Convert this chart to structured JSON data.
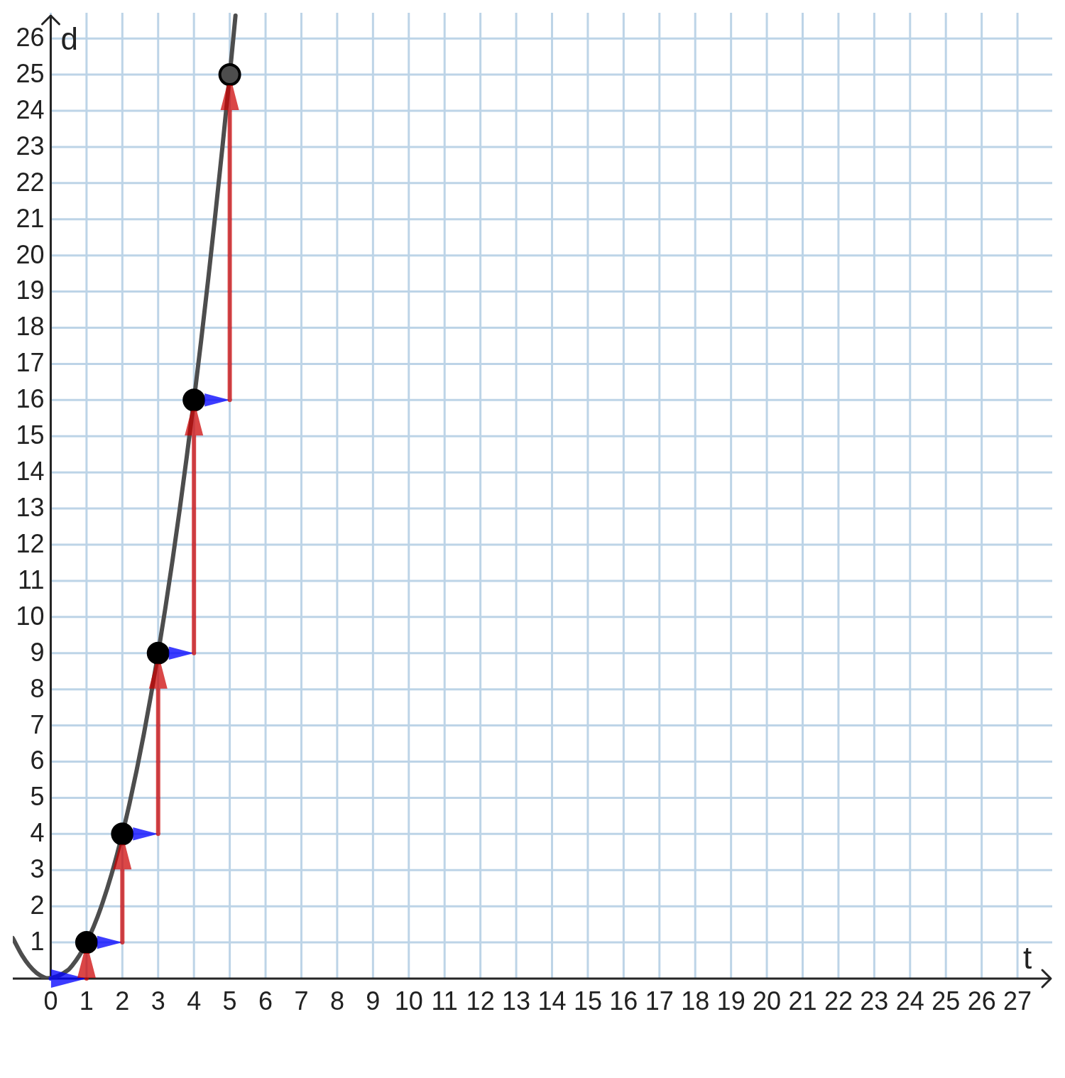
{
  "chart_data": {
    "type": "line",
    "xlabel": "t",
    "ylabel": "d",
    "xlim": [
      -1.06,
      27.97
    ],
    "ylim": [
      0,
      26.71
    ],
    "xticks": [
      0,
      1,
      2,
      3,
      4,
      5,
      6,
      7,
      8,
      9,
      10,
      11,
      12,
      13,
      14,
      15,
      16,
      17,
      18,
      19,
      20,
      21,
      22,
      23,
      24,
      25,
      26,
      27
    ],
    "yticks": [
      1,
      2,
      3,
      4,
      5,
      6,
      7,
      8,
      9,
      10,
      11,
      12,
      13,
      14,
      15,
      16,
      17,
      18,
      19,
      20,
      21,
      22,
      23,
      24,
      25,
      26
    ],
    "grid": true,
    "series": [
      {
        "color": "#4d4d4d",
        "marker": "none",
        "x": [
          -1.06,
          -0.8,
          -0.6,
          -0.4,
          -0.2,
          -0.1,
          0.5,
          0.6,
          0.8,
          1,
          1.2,
          1.4,
          1.7,
          2,
          2.2,
          2.4,
          2.6,
          2.8,
          3,
          3.2,
          3.4,
          3.6,
          3.8,
          4,
          4.2,
          4.4,
          4.6,
          4.8,
          5,
          5.16
        ],
        "values": [
          1.12,
          0.64,
          0.36,
          0.16,
          0.04,
          0.01,
          0.25,
          0.36,
          0.64,
          1,
          1.44,
          1.96,
          2.89,
          4,
          4.84,
          5.76,
          6.76,
          7.84,
          9,
          10.24,
          11.56,
          12.96,
          14.44,
          16,
          17.64,
          19.36,
          21.16,
          23.04,
          25,
          26.63
        ]
      },
      {
        "type": "scatter",
        "color": "#000000",
        "colors": [
          "#000000",
          "#000000",
          "#000000",
          "#000000",
          "#4d4d4d"
        ],
        "marker": "circle",
        "x": [
          1,
          2,
          3,
          4,
          5
        ],
        "values": [
          1,
          4,
          9,
          16,
          25
        ]
      }
    ]
  }
}
